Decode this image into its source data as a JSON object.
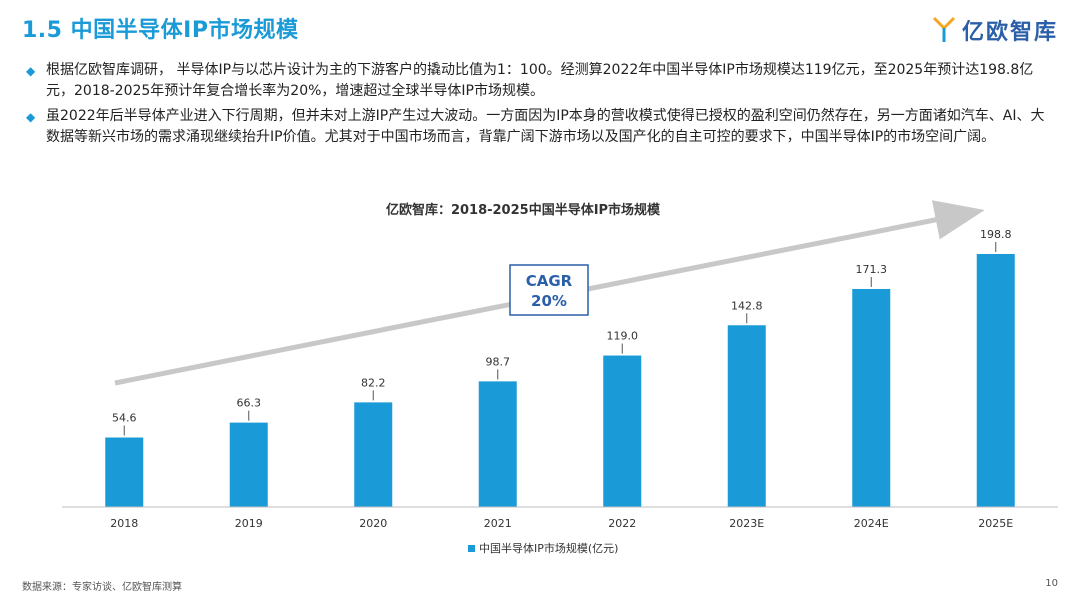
{
  "header": {
    "title": "1.5 中国半导体IP市场规模",
    "logo_text": "亿欧智库"
  },
  "bullets": [
    "根据亿欧智库调研，  半导体IP与以芯片设计为主的下游客户的撬动比值为1：100。经测算2022年中国半导体IP市场规模达119亿元，至2025年预计达198.8亿元，2018-2025年预计年复合增长率为20%，增速超过全球半导体IP市场规模。",
    "虽2022年后半导体产业进入下行周期，但并未对上游IP产生过大波动。一方面因为IP本身的营收模式使得已授权的盈利空间仍然存在，另一方面诸如汽车、AI、大数据等新兴市场的需求涌现继续抬升IP价值。尤其对于中国市场而言，背靠广阔下游市场以及国产化的自主可控的要求下，中国半导体IP的市场空间广阔。"
  ],
  "chart_data": {
    "type": "bar",
    "title": "亿欧智库：2018-2025中国半导体IP市场规模",
    "categories": [
      "2018",
      "2019",
      "2020",
      "2021",
      "2022",
      "2023E",
      "2024E",
      "2025E"
    ],
    "series": [
      {
        "name": "中国半导体IP市场规模(亿元)",
        "values": [
          54.6,
          66.3,
          82.2,
          98.7,
          119.0,
          142.8,
          171.3,
          198.8
        ]
      }
    ],
    "data_labels": [
      "54.6",
      "66.3",
      "82.2",
      "98.7",
      "119.0",
      "142.8",
      "171.3",
      "198.8"
    ],
    "annotation": {
      "line1": "CAGR",
      "line2": "20%"
    },
    "ylim": [
      0,
      220
    ],
    "grid": false,
    "legend_position": "bottom",
    "bar_color": "#1a9bd7"
  },
  "footer": {
    "source": "数据来源：专家访谈、亿欧智库测算",
    "page": "10"
  }
}
